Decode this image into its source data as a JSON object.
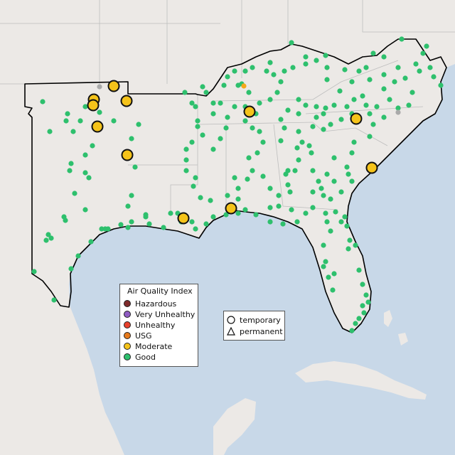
{
  "legend": {
    "title": "Air Quality Index",
    "categories": [
      {
        "label": "Hazardous",
        "color": "#7e2a2a"
      },
      {
        "label": "Very Unhealthy",
        "color": "#8f5cc2"
      },
      {
        "label": "Unhealthy",
        "color": "#e8412c"
      },
      {
        "label": "USG",
        "color": "#e67a1c"
      },
      {
        "label": "Moderate",
        "color": "#f5c31a"
      },
      {
        "label": "Good",
        "color": "#2ec06d"
      }
    ]
  },
  "monitor_types": [
    {
      "label": "temporary",
      "shape": "circle-icon"
    },
    {
      "label": "permanent",
      "shape": "triangle-icon"
    }
  ],
  "colors": {
    "water": "#c8d8e8",
    "land": "#ece9e6",
    "region_outline": "#000000",
    "state_border": "#bdbdbd"
  }
}
